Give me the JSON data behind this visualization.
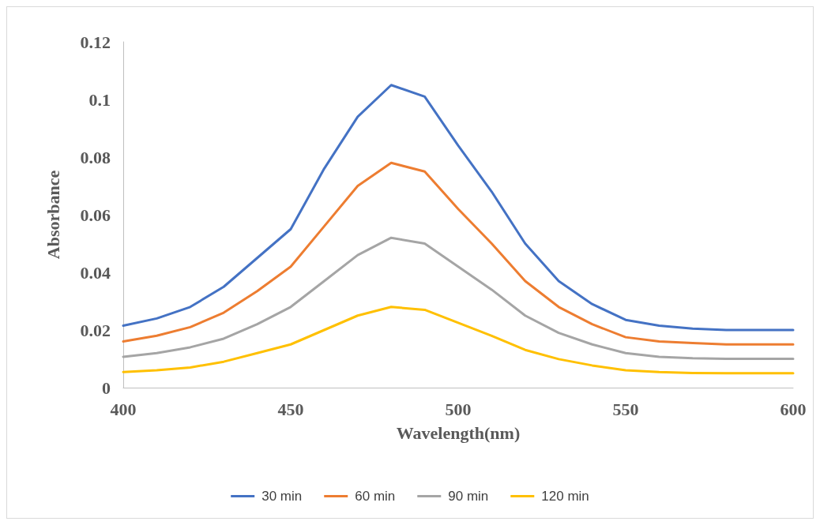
{
  "chart_data": {
    "type": "line",
    "xlabel": "Wavelength(nm)",
    "ylabel": "Absorbance",
    "x": [
      400,
      410,
      420,
      430,
      440,
      450,
      460,
      470,
      480,
      490,
      500,
      510,
      520,
      530,
      540,
      550,
      560,
      570,
      580,
      590,
      600
    ],
    "series": [
      {
        "name": "30 min",
        "color": "#4472c4",
        "values": [
          0.0215,
          0.024,
          0.028,
          0.035,
          0.045,
          0.055,
          0.076,
          0.094,
          0.105,
          0.101,
          0.084,
          0.068,
          0.05,
          0.037,
          0.029,
          0.0235,
          0.0215,
          0.0205,
          0.02,
          0.02,
          0.02
        ]
      },
      {
        "name": "60 min",
        "color": "#ed7d31",
        "values": [
          0.016,
          0.018,
          0.021,
          0.026,
          0.0335,
          0.042,
          0.056,
          0.07,
          0.078,
          0.075,
          0.062,
          0.05,
          0.037,
          0.028,
          0.022,
          0.0175,
          0.016,
          0.0155,
          0.015,
          0.015,
          0.015
        ]
      },
      {
        "name": "90 min",
        "color": "#a5a5a5",
        "values": [
          0.0107,
          0.012,
          0.014,
          0.017,
          0.022,
          0.028,
          0.037,
          0.046,
          0.052,
          0.05,
          0.042,
          0.034,
          0.025,
          0.019,
          0.015,
          0.012,
          0.0107,
          0.0102,
          0.01,
          0.01,
          0.01
        ]
      },
      {
        "name": "120 min",
        "color": "#ffc000",
        "values": [
          0.0054,
          0.006,
          0.007,
          0.009,
          0.012,
          0.015,
          0.02,
          0.025,
          0.028,
          0.027,
          0.0225,
          0.018,
          0.0131,
          0.0099,
          0.0077,
          0.006,
          0.0054,
          0.0051,
          0.005,
          0.005,
          0.005
        ]
      }
    ],
    "xlim": [
      400,
      600
    ],
    "xticks": [
      400,
      450,
      500,
      550,
      600
    ],
    "ylim": [
      0,
      0.12
    ],
    "yticks": [
      0,
      0.02,
      0.04,
      0.06,
      0.08,
      0.1,
      0.12
    ],
    "grid": false,
    "legend": "bottom",
    "marker": "none",
    "line_style": "solid"
  }
}
